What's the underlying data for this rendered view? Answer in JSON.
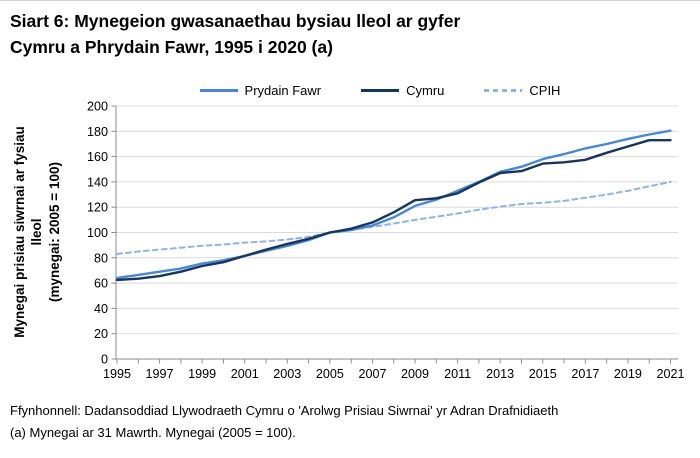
{
  "title": {
    "line1": "Siart 6: Mynegeion gwasanaethau bysiau lleol ar gyfer",
    "line2": "Cymru a Phrydain Fawr, 1995 i 2020 (a)"
  },
  "legend": {
    "items": [
      {
        "label": "Prydain Fawr",
        "color": "#4587db",
        "style": "solid"
      },
      {
        "label": "Cymru",
        "color": "#17365d",
        "style": "solid"
      },
      {
        "label": "CPIH",
        "color": "#8fb4e3",
        "style": "dashed"
      }
    ]
  },
  "y_axis_label": {
    "line1": "Mynegai prisiau siwrnai ar fysiau",
    "line2": "lleol",
    "line3": "(mynegai: 2005 = 100)"
  },
  "footer": {
    "line1": "Ffynhonnell: Dadansoddiad Llywodraeth Cymru o 'Arolwg Prisiau Siwrnai' yr Adran Drafnidiaeth",
    "line2": "(a) Mynegai ar 31 Mawrth. Mynegai (2005 = 100)."
  },
  "chart_data": {
    "type": "line",
    "x": [
      1995,
      1996,
      1997,
      1998,
      1999,
      2000,
      2001,
      2002,
      2003,
      2004,
      2005,
      2006,
      2007,
      2008,
      2009,
      2010,
      2011,
      2012,
      2013,
      2014,
      2015,
      2016,
      2017,
      2018,
      2019,
      2020,
      2021
    ],
    "series": [
      {
        "name": "Prydain Fawr",
        "color": "#4587db",
        "dash": null,
        "width": 2.4,
        "values": [
          64,
          66.5,
          69,
          71.5,
          75.5,
          78,
          81.5,
          85.5,
          89.5,
          94,
          100,
          102,
          105.5,
          112,
          121,
          126,
          133,
          140,
          148,
          152,
          158,
          162,
          166.5,
          170,
          174,
          177.5,
          180.5
        ]
      },
      {
        "name": "Cymru",
        "color": "#17365d",
        "dash": null,
        "width": 2.4,
        "values": [
          62.5,
          63.5,
          65.5,
          69,
          73.5,
          76.5,
          81.5,
          86.5,
          91,
          95,
          100,
          103,
          108,
          116,
          125.5,
          127,
          131,
          139.5,
          147,
          148.5,
          154.5,
          155.5,
          157.5,
          163,
          168,
          173,
          173
        ]
      },
      {
        "name": "CPIH",
        "color": "#8fb4e3",
        "dash": "5 4",
        "width": 2,
        "values": [
          83,
          85,
          86.5,
          88,
          89.5,
          90.5,
          92,
          93,
          94.5,
          96.5,
          100,
          102,
          104.5,
          107,
          110,
          112.5,
          115,
          118,
          120.5,
          122.5,
          123.5,
          125,
          127.5,
          130,
          133,
          136.5,
          140
        ]
      }
    ],
    "ylabel": "Mynegai prisiau siwrnai ar fysiau lleol (mynegai: 2005 = 100)",
    "ylim": [
      0,
      200
    ],
    "ytick_step": 20,
    "xtick_labels": [
      "1995",
      "1997",
      "1999",
      "2001",
      "2003",
      "2005",
      "2007",
      "2009",
      "2011",
      "2013",
      "2015",
      "2017",
      "2019",
      "2021"
    ],
    "grid": true,
    "legend_position": "top",
    "axis_color": "#8c8c8c",
    "grid_color": "#d9d9d9"
  }
}
